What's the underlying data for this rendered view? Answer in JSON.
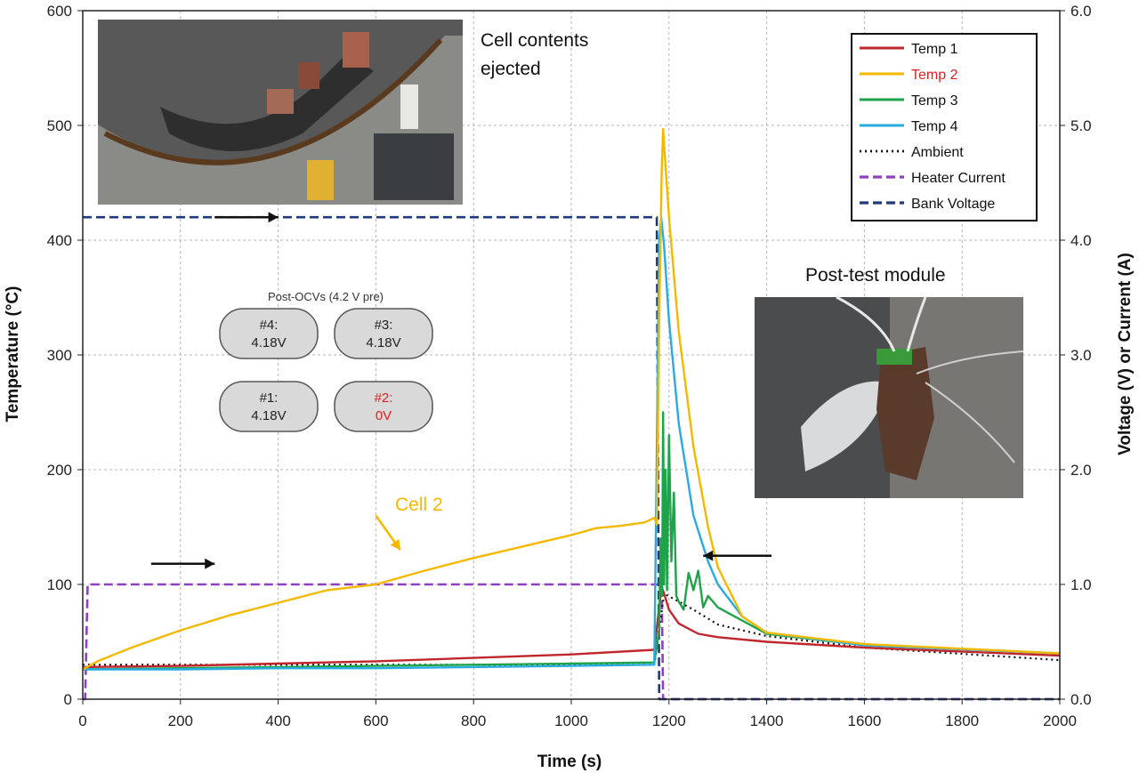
{
  "chart_data": {
    "type": "line",
    "xlabel": "Time (s)",
    "ylabel": "Temperature (°C)",
    "y2label": "Voltage (V) or Current (A)",
    "xlim": [
      0,
      2000
    ],
    "ylim": [
      0,
      600
    ],
    "y2lim": [
      0,
      6
    ],
    "grid": true,
    "legend_position": "top-right",
    "x_ticks": [
      "0",
      "200",
      "400",
      "600",
      "800",
      "1000",
      "1200",
      "1400",
      "1600",
      "1800",
      "2000"
    ],
    "y_ticks": [
      "0",
      "100",
      "200",
      "300",
      "400",
      "500",
      "600"
    ],
    "y2_ticks": [
      "0.0",
      "1.0",
      "2.0",
      "3.0",
      "4.0",
      "5.0",
      "6.0"
    ],
    "series": [
      {
        "name": "Temp 1",
        "color": "#c0272d",
        "style": "solid",
        "axis": "left",
        "x": [
          0,
          200,
          400,
          600,
          800,
          1000,
          1170,
          1180,
          1185,
          1190,
          1200,
          1220,
          1260,
          1300,
          1400,
          1600,
          2000
        ],
        "y": [
          28,
          29,
          31,
          33,
          36,
          39,
          43,
          80,
          98,
          92,
          78,
          66,
          57,
          54,
          50,
          45,
          38
        ]
      },
      {
        "name": "Temp 2",
        "color": "#f5b800",
        "style": "solid",
        "axis": "left",
        "label_color": "#e02020",
        "x": [
          0,
          30,
          100,
          200,
          300,
          400,
          500,
          600,
          700,
          800,
          900,
          1000,
          1050,
          1100,
          1150,
          1170,
          1175,
          1180,
          1185,
          1188,
          1192,
          1200,
          1220,
          1250,
          1280,
          1300,
          1350,
          1400,
          1600,
          2000
        ],
        "y": [
          26,
          33,
          45,
          60,
          73,
          84,
          95,
          100,
          112,
          123,
          133,
          143,
          149,
          151,
          154,
          158,
          152,
          330,
          460,
          497,
          470,
          420,
          320,
          220,
          150,
          115,
          72,
          58,
          48,
          40
        ]
      },
      {
        "name": "Temp 3",
        "color": "#1ea34a",
        "style": "solid",
        "axis": "left",
        "x": [
          0,
          200,
          400,
          600,
          800,
          1000,
          1170,
          1180,
          1183,
          1186,
          1188,
          1190,
          1193,
          1196,
          1200,
          1205,
          1210,
          1215,
          1220,
          1230,
          1240,
          1250,
          1260,
          1270,
          1280,
          1300,
          1400,
          1600,
          2000
        ],
        "y": [
          26,
          27,
          28,
          29,
          30,
          31,
          32,
          60,
          140,
          90,
          250,
          100,
          200,
          95,
          230,
          120,
          180,
          90,
          85,
          78,
          110,
          95,
          112,
          80,
          90,
          80,
          57,
          47,
          40
        ]
      },
      {
        "name": "Temp 4",
        "color": "#29abe2",
        "style": "solid",
        "axis": "left",
        "x": [
          0,
          200,
          400,
          600,
          800,
          1000,
          1170,
          1176,
          1180,
          1184,
          1190,
          1200,
          1220,
          1250,
          1280,
          1300,
          1350,
          1400,
          1600,
          2000
        ],
        "y": [
          26,
          26,
          27,
          27,
          28,
          29,
          30,
          250,
          400,
          420,
          395,
          330,
          240,
          160,
          120,
          100,
          72,
          58,
          47,
          40
        ]
      },
      {
        "name": "Ambient",
        "color": "#111111",
        "style": "dotted",
        "axis": "left",
        "x": [
          0,
          500,
          1000,
          1170,
          1180,
          1190,
          1250,
          1300,
          1400,
          1600,
          2000
        ],
        "y": [
          30,
          30,
          30,
          30,
          60,
          92,
          78,
          65,
          55,
          45,
          34
        ]
      },
      {
        "name": "Heater Current",
        "color": "#8f3fc1",
        "style": "dashed",
        "axis": "right",
        "x": [
          0,
          5,
          10,
          1185,
          1188,
          1190,
          2000
        ],
        "y": [
          0,
          0,
          1.0,
          1.0,
          0,
          0,
          0
        ]
      },
      {
        "name": "Bank Voltage",
        "color": "#1f3a7a",
        "style": "dashed",
        "axis": "right",
        "x": [
          0,
          1172,
          1175,
          1180,
          2000
        ],
        "y": [
          4.2,
          4.2,
          4.2,
          0,
          0
        ]
      }
    ],
    "annotations": [
      {
        "text": "Cell contents",
        "type": "caption"
      },
      {
        "text": "ejected",
        "type": "caption"
      },
      {
        "text": "Post-test module",
        "type": "caption"
      },
      {
        "text": "Cell 2",
        "type": "label",
        "color": "#f5b800"
      }
    ],
    "arrows": [
      {
        "from": [
          270,
          420
        ],
        "to": [
          400,
          420
        ],
        "axis": "left"
      },
      {
        "from": [
          140,
          118
        ],
        "to": [
          270,
          118
        ],
        "axis": "left"
      },
      {
        "from": [
          1410,
          125
        ],
        "to": [
          1270,
          125
        ],
        "axis": "left"
      },
      {
        "from": [
          600,
          160
        ],
        "to": [
          650,
          130
        ],
        "axis": "left",
        "color": "#f5b800"
      }
    ],
    "ocv_panel": {
      "title": "Post-OCVs (4.2 V pre)",
      "cells": [
        {
          "id": "#4:",
          "value": "4.18V",
          "color": "#333333"
        },
        {
          "id": "#3:",
          "value": "4.18V",
          "color": "#333333"
        },
        {
          "id": "#1:",
          "value": "4.18V",
          "color": "#333333"
        },
        {
          "id": "#2:",
          "value": "0V",
          "color": "#e02020"
        }
      ]
    }
  }
}
